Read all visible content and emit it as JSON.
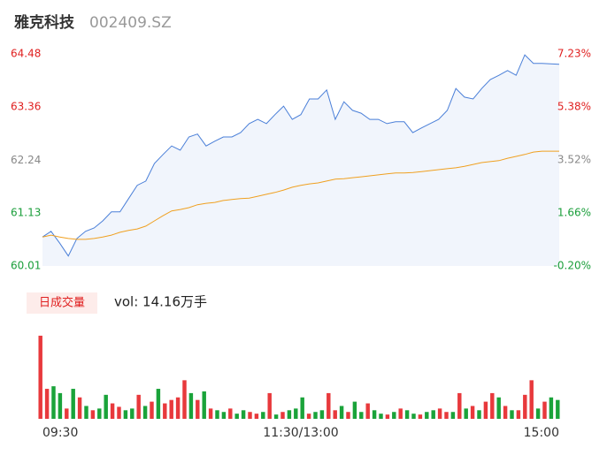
{
  "header": {
    "name": "雅克科技",
    "code": "002409.SZ"
  },
  "chart_data": [
    {
      "type": "line",
      "x": [
        0,
        4,
        8,
        12,
        16,
        20,
        24,
        28,
        32,
        36,
        40,
        44,
        48,
        52,
        56,
        60,
        64,
        68,
        72,
        76,
        80,
        84,
        88,
        92,
        96,
        100,
        104,
        108,
        112,
        116,
        120,
        124,
        128,
        132,
        136,
        140,
        144,
        148,
        152,
        156,
        160,
        164,
        168,
        172,
        176,
        180,
        184,
        188,
        192,
        196,
        200,
        204,
        208,
        212,
        216,
        220,
        224,
        228,
        232,
        240
      ],
      "xlim": [
        0,
        240
      ],
      "xticks": [
        {
          "value": 0,
          "label": "09:30"
        },
        {
          "value": 120,
          "label": "11:30/13:00"
        },
        {
          "value": 240,
          "label": "15:00"
        }
      ],
      "series": [
        {
          "color": "#4a7fd8",
          "fill": "#f1f5fc",
          "values": [
            60.62,
            60.74,
            60.49,
            60.22,
            60.59,
            60.74,
            60.81,
            60.96,
            61.15,
            61.15,
            61.43,
            61.71,
            61.8,
            62.17,
            62.36,
            62.54,
            62.45,
            62.73,
            62.79,
            62.54,
            62.64,
            62.73,
            62.73,
            62.82,
            63.01,
            63.1,
            63.01,
            63.2,
            63.38,
            63.1,
            63.2,
            63.53,
            63.53,
            63.72,
            63.1,
            63.47,
            63.29,
            63.23,
            63.1,
            63.1,
            63.01,
            63.05,
            63.05,
            62.82,
            62.92,
            63.01,
            63.1,
            63.29,
            63.75,
            63.57,
            63.53,
            63.75,
            63.94,
            64.03,
            64.13,
            64.03,
            64.46,
            64.28,
            64.28,
            64.26
          ]
        },
        {
          "color": "#f0a020",
          "values": [
            60.62,
            60.66,
            60.62,
            60.59,
            60.57,
            60.57,
            60.59,
            60.62,
            60.66,
            60.72,
            60.76,
            60.79,
            60.85,
            60.96,
            61.07,
            61.17,
            61.2,
            61.24,
            61.3,
            61.33,
            61.35,
            61.39,
            61.41,
            61.43,
            61.44,
            61.48,
            61.52,
            61.56,
            61.61,
            61.67,
            61.71,
            61.74,
            61.76,
            61.8,
            61.84,
            61.85,
            61.87,
            61.89,
            61.91,
            61.93,
            61.95,
            61.97,
            61.97,
            61.98,
            62.0,
            62.02,
            62.04,
            62.06,
            62.08,
            62.11,
            62.15,
            62.19,
            62.21,
            62.23,
            62.28,
            62.32,
            62.36,
            62.41,
            62.43,
            62.43
          ]
        }
      ],
      "ylim": [
        60.01,
        64.48
      ],
      "yticks": [
        60.01,
        61.13,
        62.24,
        63.36,
        64.48
      ],
      "y2lim": [
        -0.2,
        7.23
      ],
      "y2ticks": [
        {
          "value": -0.2,
          "label": "-0.20%"
        },
        {
          "value": 1.66,
          "label": "1.66%"
        },
        {
          "value": 3.52,
          "label": "3.52%"
        },
        {
          "value": 5.38,
          "label": "5.38%"
        },
        {
          "value": 7.23,
          "label": "7.23%"
        }
      ],
      "tick_colors": [
        "#1a9e3a",
        "#1a9e3a",
        "#888888",
        "#e02020",
        "#e02020"
      ],
      "grid": false
    },
    {
      "type": "bar",
      "label": "日成交量",
      "title": "vol: 14.16万手",
      "up_color": "#e8393c",
      "down_color": "#1aa33a",
      "ylim": [
        0,
        100
      ],
      "values": [
        97,
        35,
        38,
        30,
        12,
        35,
        25,
        15,
        10,
        12,
        28,
        18,
        14,
        10,
        12,
        28,
        15,
        20,
        35,
        18,
        22,
        25,
        45,
        30,
        22,
        32,
        12,
        10,
        8,
        12,
        6,
        10,
        8,
        6,
        8,
        30,
        5,
        8,
        10,
        12,
        25,
        6,
        8,
        10,
        30,
        10,
        15,
        8,
        20,
        8,
        18,
        10,
        6,
        5,
        8,
        12,
        10,
        6,
        5,
        8,
        10,
        12,
        8,
        8,
        30,
        12,
        15,
        10,
        20,
        30,
        25,
        15,
        10,
        10,
        28,
        45,
        12,
        20,
        25,
        22
      ],
      "up": [
        1,
        1,
        0,
        0,
        1,
        0,
        1,
        0,
        1,
        0,
        0,
        1,
        1,
        0,
        0,
        1,
        0,
        1,
        0,
        1,
        1,
        1,
        1,
        0,
        1,
        0,
        1,
        0,
        0,
        1,
        0,
        0,
        1,
        1,
        0,
        1,
        0,
        1,
        0,
        0,
        0,
        1,
        0,
        0,
        1,
        1,
        0,
        1,
        0,
        0,
        1,
        0,
        0,
        1,
        0,
        1,
        0,
        0,
        1,
        0,
        0,
        1,
        1,
        0,
        1,
        0,
        1,
        0,
        1,
        1,
        0,
        1,
        0,
        1,
        1,
        1,
        0,
        1,
        0,
        0
      ]
    }
  ]
}
